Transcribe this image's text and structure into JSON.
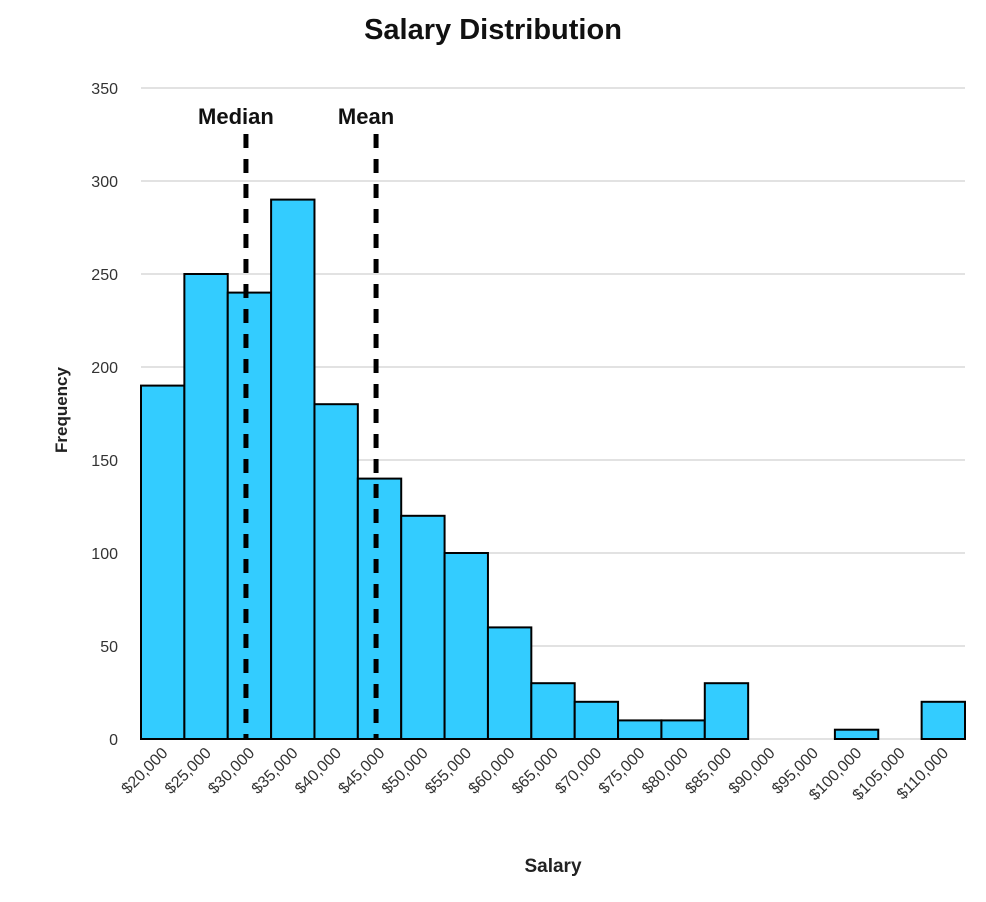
{
  "chart_data": {
    "type": "bar",
    "title": "Salary Distribution",
    "xlabel": "Salary",
    "ylabel": "Frequency",
    "categories": [
      "$20,000",
      "$25,000",
      "$30,000",
      "$35,000",
      "$40,000",
      "$45,000",
      "$50,000",
      "$55,000",
      "$60,000",
      "$65,000",
      "$70,000",
      "$75,000",
      "$80,000",
      "$85,000",
      "$90,000",
      "$95,000",
      "$100,000",
      "$105,000",
      "$110,000"
    ],
    "values": [
      190,
      250,
      240,
      290,
      180,
      140,
      120,
      100,
      60,
      30,
      20,
      10,
      10,
      30,
      0,
      0,
      5,
      0,
      20
    ],
    "bin_start": 20000,
    "bin_width": 5000,
    "ylim": [
      0,
      350
    ],
    "yticks": [
      0,
      50,
      100,
      150,
      200,
      250,
      300,
      350
    ],
    "grid": true,
    "bar_color": "#33CCFF",
    "bar_edge_color": "#000000",
    "annotations": [
      {
        "label": "Median",
        "x": 32100
      },
      {
        "label": "Mean",
        "x": 47100
      }
    ]
  }
}
